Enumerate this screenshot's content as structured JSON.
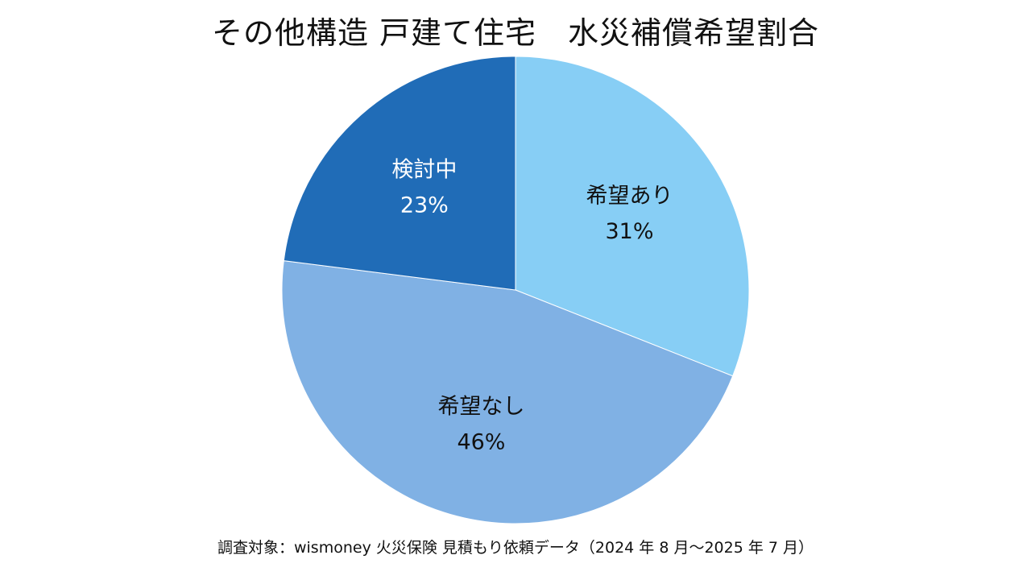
{
  "chart_data": {
    "type": "pie",
    "title": "その他構造 戸建て住宅　水災補償希望割合",
    "slices": [
      {
        "name": "希望あり",
        "value": 31,
        "label": "31%",
        "color": "#87CEF5",
        "text_color": "#111111"
      },
      {
        "name": "希望なし",
        "value": 46,
        "label": "46%",
        "color": "#80B1E4",
        "text_color": "#111111"
      },
      {
        "name": "検討中",
        "value": 23,
        "label": "23%",
        "color": "#206CB7",
        "text_color": "#ffffff"
      }
    ],
    "start": "12 o'clock",
    "direction": "clockwise",
    "legend": "none"
  },
  "footnote": "調査対象：wismoney 火災保険 見積もり依頼データ（2024 年 8 月〜2025 年 7 月）"
}
